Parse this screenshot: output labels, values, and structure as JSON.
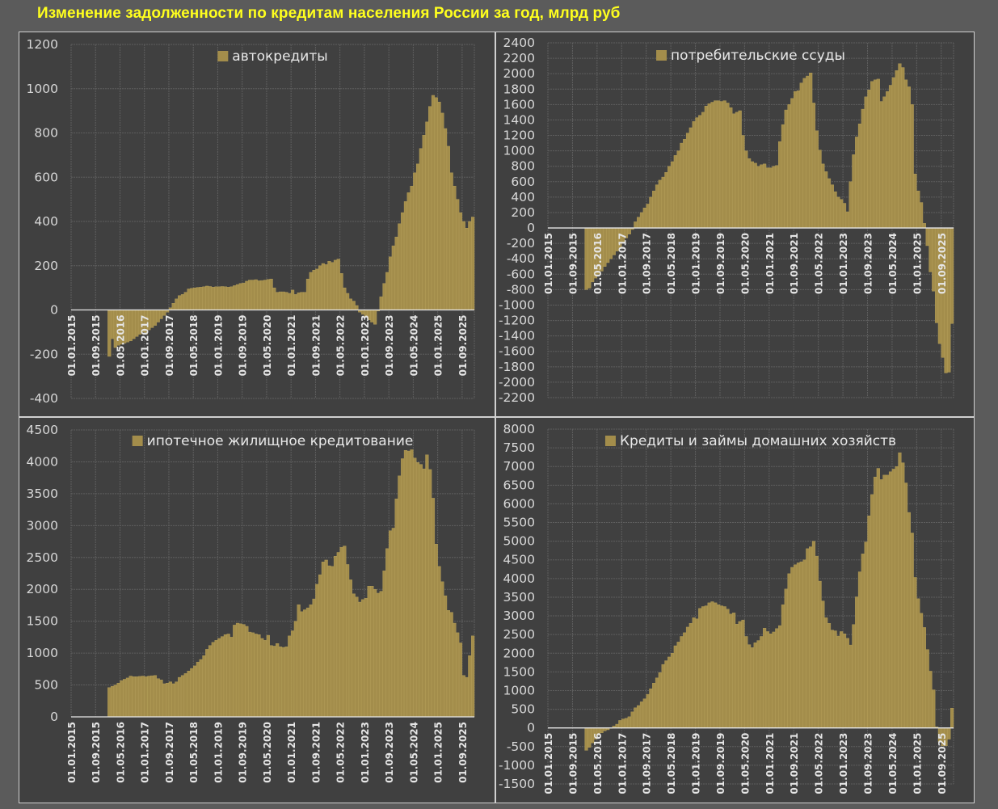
{
  "title": "Изменение задолженности по кредитам населения России за год, млрд руб",
  "colors": {
    "bar": "#a38d4b",
    "bar_edge": "#b8a25c",
    "panel": "#404040",
    "background": "#5b5b5b",
    "title": "#ffff1e"
  },
  "chart_data": [
    {
      "type": "bar",
      "legend": "автокредиты",
      "legend_position": "top-center",
      "x_start": "2015-01",
      "x_end": "2025-12",
      "x_tick_labels": [
        "01.01.2015",
        "01.09.2015",
        "01.05.2016",
        "01.01.2017",
        "01.09.2017",
        "01.05.2018",
        "01.01.2019",
        "01.09.2019",
        "01.05.2020",
        "01.01.2021",
        "01.09.2021",
        "01.05.2022",
        "01.01.2023",
        "01.09.2023",
        "01.05.2024",
        "01.01.2025",
        "01.09.2025"
      ],
      "y_tick_labels": [
        "-400",
        "-200",
        "0",
        "200",
        "400",
        "600",
        "800",
        "1000",
        "1200"
      ],
      "ylim": [
        -400,
        1200
      ],
      "ystep": 200,
      "grid": true,
      "values_start": "2016-01",
      "values": [
        -210,
        -130,
        -170,
        -160,
        -155,
        -150,
        -145,
        -140,
        -130,
        -120,
        -110,
        -100,
        -110,
        -90,
        -80,
        -70,
        -55,
        -40,
        -25,
        -10,
        10,
        30,
        50,
        65,
        70,
        80,
        95,
        98,
        100,
        102,
        103,
        105,
        108,
        106,
        103,
        105,
        105,
        106,
        105,
        103,
        105,
        110,
        115,
        120,
        122,
        130,
        135,
        135,
        137,
        132,
        133,
        135,
        138,
        140,
        100,
        80,
        82,
        82,
        80,
        75,
        90,
        70,
        78,
        80,
        80,
        140,
        170,
        180,
        185,
        200,
        210,
        205,
        220,
        215,
        225,
        230,
        165,
        100,
        75,
        50,
        40,
        20,
        -10,
        -20,
        -30,
        -45,
        -55,
        -65,
        -5,
        60,
        120,
        170,
        240,
        290,
        330,
        390,
        440,
        490,
        530,
        560,
        620,
        660,
        730,
        790,
        850,
        920,
        970,
        960,
        940,
        890,
        820,
        740,
        620,
        560,
        500,
        440,
        400,
        370,
        400,
        420
      ]
    },
    {
      "type": "bar",
      "legend": "потребительские ссуды",
      "legend_position": "top-center",
      "x_start": "2015-01",
      "x_end": "2025-12",
      "x_tick_labels": [
        "01.01.2015",
        "01.09.2015",
        "01.05.2016",
        "01.01.2017",
        "01.09.2017",
        "01.05.2018",
        "01.01.2019",
        "01.09.2019",
        "01.05.2020",
        "01.01.2021",
        "01.09.2021",
        "01.05.2022",
        "01.01.2023",
        "01.09.2023",
        "01.05.2024",
        "01.01.2025",
        "01.09.2025"
      ],
      "y_tick_labels": [
        "-2200",
        "-2000",
        "-1800",
        "-1600",
        "-1400",
        "-1200",
        "-1000",
        "-800",
        "-600",
        "-400",
        "-200",
        "0",
        "200",
        "400",
        "600",
        "800",
        "1000",
        "1200",
        "1400",
        "1600",
        "1800",
        "2000",
        "2200",
        "2400"
      ],
      "ylim": [
        -2200,
        2400
      ],
      "ystep": 200,
      "grid": true,
      "values_start": "2016-01",
      "values": [
        -800,
        -780,
        -700,
        -650,
        -600,
        -560,
        -500,
        -450,
        -400,
        -350,
        -300,
        -260,
        -180,
        -130,
        -80,
        -20,
        80,
        140,
        200,
        260,
        310,
        400,
        480,
        560,
        620,
        660,
        720,
        800,
        860,
        940,
        1000,
        1100,
        1150,
        1230,
        1300,
        1380,
        1430,
        1460,
        1500,
        1580,
        1610,
        1630,
        1650,
        1650,
        1640,
        1650,
        1620,
        1560,
        1480,
        1500,
        1520,
        1200,
        1000,
        900,
        860,
        840,
        800,
        820,
        830,
        780,
        780,
        800,
        810,
        1120,
        1340,
        1530,
        1600,
        1680,
        1770,
        1780,
        1880,
        1940,
        1970,
        2010,
        1620,
        1260,
        1010,
        830,
        730,
        640,
        560,
        470,
        400,
        370,
        320,
        210,
        600,
        950,
        1180,
        1350,
        1540,
        1700,
        1790,
        1900,
        1920,
        1930,
        1640,
        1700,
        1770,
        1850,
        1950,
        2040,
        2130,
        2080,
        1920,
        1830,
        1600,
        700,
        480,
        330,
        60,
        -230,
        -570,
        -820,
        -1230,
        -1500,
        -1680,
        -1880,
        -1870,
        -1240
      ]
    },
    {
      "type": "bar",
      "legend": "ипотечное жилищное кредитование",
      "legend_position": "top-center",
      "x_start": "2015-01",
      "x_end": "2025-12",
      "x_tick_labels": [
        "01.01.2015",
        "01.09.2015",
        "01.05.2016",
        "01.01.2017",
        "01.09.2017",
        "01.05.2018",
        "01.01.2019",
        "01.09.2019",
        "01.05.2020",
        "01.01.2021",
        "01.09.2021",
        "01.05.2022",
        "01.01.2023",
        "01.09.2023",
        "01.05.2024",
        "01.01.2025",
        "01.09.2025"
      ],
      "y_tick_labels": [
        "0",
        "500",
        "1000",
        "1500",
        "2000",
        "2500",
        "3000",
        "3500",
        "4000",
        "4500"
      ],
      "ylim": [
        0,
        4500
      ],
      "ystep": 500,
      "grid": true,
      "values_start": "2016-01",
      "values": [
        460,
        480,
        500,
        530,
        570,
        590,
        610,
        640,
        630,
        630,
        635,
        640,
        630,
        640,
        645,
        650,
        600,
        580,
        520,
        530,
        550,
        520,
        550,
        620,
        650,
        680,
        720,
        760,
        800,
        860,
        900,
        960,
        1060,
        1120,
        1170,
        1200,
        1230,
        1260,
        1290,
        1300,
        1250,
        1440,
        1470,
        1460,
        1450,
        1420,
        1330,
        1320,
        1300,
        1290,
        1230,
        1200,
        1280,
        1120,
        1110,
        1150,
        1100,
        1090,
        1100,
        1270,
        1350,
        1500,
        1760,
        1650,
        1680,
        1710,
        1760,
        1850,
        2080,
        2230,
        2430,
        2460,
        2370,
        2360,
        2520,
        2580,
        2660,
        2680,
        2390,
        2150,
        1930,
        1880,
        1800,
        1840,
        1860,
        2050,
        2050,
        2000,
        1940,
        1970,
        2290,
        2640,
        2920,
        2960,
        3420,
        3780,
        4050,
        4180,
        4170,
        4190,
        4060,
        3990,
        3960,
        3890,
        4110,
        3880,
        3430,
        2710,
        2360,
        2120,
        1900,
        1670,
        1640,
        1470,
        1320,
        1160,
        650,
        620,
        960,
        1270
      ]
    },
    {
      "type": "bar",
      "legend": "Кредиты и займы домашних хозяйств",
      "legend_position": "top-center",
      "x_start": "2015-01",
      "x_end": "2025-12",
      "x_tick_labels": [
        "01.01.2015",
        "01.09.2015",
        "01.05.2016",
        "01.01.2017",
        "01.09.2017",
        "01.05.2018",
        "01.01.2019",
        "01.09.2019",
        "01.05.2020",
        "01.01.2021",
        "01.09.2021",
        "01.05.2022",
        "01.01.2023",
        "01.09.2023",
        "01.05.2024",
        "01.01.2025",
        "01.09.2025"
      ],
      "y_tick_labels": [
        "-1500",
        "-1000",
        "-500",
        "0",
        "500",
        "1000",
        "1500",
        "2000",
        "2500",
        "3000",
        "3500",
        "4000",
        "4500",
        "5000",
        "5500",
        "6000",
        "6500",
        "7000",
        "7500",
        "8000"
      ],
      "ylim": [
        -1500,
        8000
      ],
      "ystep": 500,
      "grid": true,
      "values_start": "2016-01",
      "values": [
        -600,
        -520,
        -400,
        -300,
        -200,
        -130,
        -80,
        -50,
        0,
        50,
        100,
        200,
        240,
        260,
        300,
        430,
        540,
        600,
        700,
        780,
        900,
        1050,
        1200,
        1340,
        1480,
        1700,
        1800,
        1900,
        2000,
        2200,
        2300,
        2450,
        2550,
        2700,
        2800,
        2950,
        2920,
        3200,
        3250,
        3270,
        3350,
        3380,
        3350,
        3300,
        3270,
        3250,
        3180,
        3050,
        3080,
        2780,
        2850,
        2890,
        2450,
        2230,
        2150,
        2280,
        2340,
        2450,
        2670,
        2580,
        2520,
        2570,
        2660,
        2740,
        3300,
        3720,
        4130,
        4300,
        4370,
        4420,
        4450,
        4500,
        4800,
        4850,
        5000,
        4600,
        3930,
        3400,
        2950,
        2800,
        2620,
        2600,
        2460,
        2580,
        2520,
        2400,
        2220,
        2770,
        3510,
        4180,
        4660,
        4980,
        5680,
        6250,
        6720,
        6950,
        6650,
        6770,
        6770,
        6860,
        6930,
        7000,
        7370,
        7100,
        6560,
        5770,
        5220,
        4030,
        3460,
        3070,
        2690,
        2100,
        1520,
        1020,
        30,
        -380,
        -480,
        -480,
        -300,
        530
      ]
    }
  ]
}
